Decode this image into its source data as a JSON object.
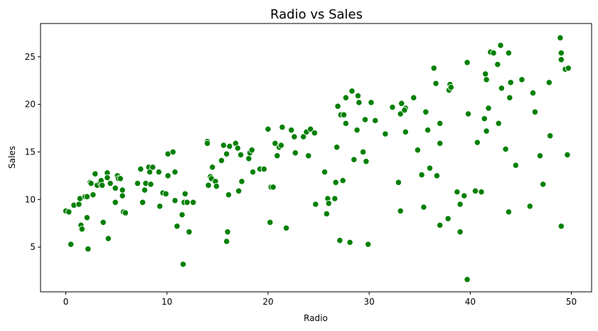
{
  "chart_data": {
    "type": "scatter",
    "title": "Radio vs Sales",
    "xlabel": "Radio",
    "ylabel": "Sales",
    "xlim": [
      -2.5,
      52.0
    ],
    "ylim": [
      0.3,
      28.5
    ],
    "x_ticks": [
      0,
      10,
      20,
      30,
      40,
      50
    ],
    "y_ticks": [
      5,
      10,
      15,
      20,
      25
    ],
    "marker_color": "#008000",
    "grid": false,
    "series": [
      {
        "points": [
          [
            0.0,
            8.8
          ],
          [
            0.3,
            8.7
          ],
          [
            0.5,
            5.3
          ],
          [
            0.8,
            9.4
          ],
          [
            1.3,
            9.5
          ],
          [
            1.4,
            10.1
          ],
          [
            1.5,
            7.3
          ],
          [
            1.6,
            6.9
          ],
          [
            1.9,
            10.3
          ],
          [
            2.1,
            10.3
          ],
          [
            2.1,
            8.1
          ],
          [
            2.2,
            4.8
          ],
          [
            2.4,
            11.8
          ],
          [
            2.5,
            11.7
          ],
          [
            2.7,
            10.5
          ],
          [
            2.9,
            12.7
          ],
          [
            3.1,
            11.5
          ],
          [
            3.4,
            11.8
          ],
          [
            3.5,
            12.0
          ],
          [
            3.6,
            11.5
          ],
          [
            3.7,
            7.6
          ],
          [
            4.1,
            12.8
          ],
          [
            4.1,
            12.3
          ],
          [
            4.2,
            5.9
          ],
          [
            4.4,
            11.7
          ],
          [
            4.9,
            9.7
          ],
          [
            4.9,
            11.2
          ],
          [
            5.1,
            12.5
          ],
          [
            5.2,
            12.2
          ],
          [
            5.4,
            12.2
          ],
          [
            5.6,
            10.4
          ],
          [
            5.6,
            11.0
          ],
          [
            5.7,
            8.7
          ],
          [
            5.9,
            8.6
          ],
          [
            7.1,
            11.7
          ],
          [
            7.4,
            13.2
          ],
          [
            7.6,
            9.7
          ],
          [
            7.8,
            11.0
          ],
          [
            7.9,
            11.7
          ],
          [
            8.2,
            13.4
          ],
          [
            8.3,
            12.9
          ],
          [
            8.4,
            11.6
          ],
          [
            8.6,
            13.4
          ],
          [
            9.2,
            12.9
          ],
          [
            9.3,
            9.3
          ],
          [
            9.6,
            10.7
          ],
          [
            9.9,
            10.6
          ],
          [
            10.1,
            12.5
          ],
          [
            10.1,
            14.8
          ],
          [
            10.6,
            15.0
          ],
          [
            10.8,
            12.9
          ],
          [
            10.8,
            9.9
          ],
          [
            11.0,
            7.2
          ],
          [
            11.5,
            8.4
          ],
          [
            11.6,
            3.2
          ],
          [
            11.7,
            9.7
          ],
          [
            11.8,
            10.6
          ],
          [
            12.0,
            9.7
          ],
          [
            12.2,
            6.6
          ],
          [
            12.6,
            9.7
          ],
          [
            14.0,
            16.1
          ],
          [
            14.0,
            15.9
          ],
          [
            14.1,
            11.5
          ],
          [
            14.3,
            12.4
          ],
          [
            14.4,
            12.2
          ],
          [
            14.5,
            13.4
          ],
          [
            14.8,
            11.9
          ],
          [
            14.9,
            11.4
          ],
          [
            15.4,
            14.1
          ],
          [
            15.6,
            15.7
          ],
          [
            15.9,
            14.8
          ],
          [
            15.9,
            5.6
          ],
          [
            16.0,
            6.6
          ],
          [
            16.1,
            10.5
          ],
          [
            16.2,
            15.6
          ],
          [
            16.8,
            15.9
          ],
          [
            17.0,
            15.4
          ],
          [
            17.1,
            10.9
          ],
          [
            17.3,
            14.7
          ],
          [
            17.4,
            11.9
          ],
          [
            18.1,
            14.3
          ],
          [
            18.2,
            14.9
          ],
          [
            18.4,
            15.2
          ],
          [
            18.5,
            12.9
          ],
          [
            19.2,
            13.2
          ],
          [
            19.6,
            13.2
          ],
          [
            20.0,
            17.4
          ],
          [
            20.2,
            7.6
          ],
          [
            20.3,
            11.3
          ],
          [
            20.5,
            11.3
          ],
          [
            20.7,
            15.9
          ],
          [
            20.9,
            14.6
          ],
          [
            21.1,
            15.5
          ],
          [
            21.3,
            15.7
          ],
          [
            21.4,
            17.6
          ],
          [
            21.8,
            7.0
          ],
          [
            22.3,
            17.3
          ],
          [
            22.6,
            16.6
          ],
          [
            22.7,
            14.9
          ],
          [
            23.5,
            16.6
          ],
          [
            23.8,
            17.1
          ],
          [
            24.0,
            14.6
          ],
          [
            24.2,
            17.4
          ],
          [
            24.6,
            17.0
          ],
          [
            24.7,
            9.5
          ],
          [
            25.6,
            12.9
          ],
          [
            25.8,
            8.5
          ],
          [
            25.9,
            10.1
          ],
          [
            26.0,
            9.6
          ],
          [
            26.6,
            10.1
          ],
          [
            26.7,
            11.8
          ],
          [
            26.8,
            15.5
          ],
          [
            26.9,
            19.8
          ],
          [
            27.1,
            5.7
          ],
          [
            27.2,
            18.9
          ],
          [
            27.4,
            12.0
          ],
          [
            27.5,
            18.9
          ],
          [
            27.7,
            20.7
          ],
          [
            27.7,
            18.0
          ],
          [
            28.1,
            5.5
          ],
          [
            28.3,
            21.4
          ],
          [
            28.5,
            14.2
          ],
          [
            28.8,
            17.3
          ],
          [
            28.9,
            20.9
          ],
          [
            29.0,
            20.2
          ],
          [
            29.4,
            15.0
          ],
          [
            29.6,
            18.4
          ],
          [
            29.7,
            14.0
          ],
          [
            29.9,
            5.3
          ],
          [
            30.2,
            20.2
          ],
          [
            30.6,
            18.3
          ],
          [
            31.6,
            16.9
          ],
          [
            32.3,
            19.7
          ],
          [
            32.9,
            11.8
          ],
          [
            33.1,
            8.8
          ],
          [
            33.2,
            20.1
          ],
          [
            33.6,
            19.6
          ],
          [
            33.6,
            17.1
          ],
          [
            33.1,
            19.0
          ],
          [
            33.5,
            19.4
          ],
          [
            34.4,
            20.7
          ],
          [
            34.8,
            15.2
          ],
          [
            35.2,
            12.6
          ],
          [
            35.4,
            9.2
          ],
          [
            35.6,
            19.2
          ],
          [
            35.8,
            17.3
          ],
          [
            36.0,
            13.3
          ],
          [
            36.6,
            22.2
          ],
          [
            36.4,
            23.8
          ],
          [
            36.7,
            12.5
          ],
          [
            37.0,
            18.0
          ],
          [
            37.0,
            15.9
          ],
          [
            37.0,
            7.3
          ],
          [
            37.8,
            8.0
          ],
          [
            37.9,
            21.5
          ],
          [
            38.0,
            22.1
          ],
          [
            38.1,
            21.8
          ],
          [
            38.7,
            10.8
          ],
          [
            39.0,
            6.6
          ],
          [
            39.0,
            9.5
          ],
          [
            39.4,
            10.4
          ],
          [
            39.7,
            1.6
          ],
          [
            39.7,
            24.4
          ],
          [
            39.8,
            19.0
          ],
          [
            40.5,
            10.9
          ],
          [
            40.7,
            16.0
          ],
          [
            41.1,
            10.8
          ],
          [
            41.4,
            18.5
          ],
          [
            41.5,
            23.2
          ],
          [
            41.6,
            22.6
          ],
          [
            41.6,
            17.2
          ],
          [
            41.8,
            19.6
          ],
          [
            42.0,
            25.5
          ],
          [
            42.3,
            25.4
          ],
          [
            42.8,
            18.0
          ],
          [
            42.7,
            24.2
          ],
          [
            43.0,
            26.2
          ],
          [
            43.1,
            21.7
          ],
          [
            43.5,
            15.3
          ],
          [
            43.8,
            25.4
          ],
          [
            43.8,
            8.7
          ],
          [
            43.9,
            20.7
          ],
          [
            44.0,
            22.3
          ],
          [
            44.5,
            13.6
          ],
          [
            45.1,
            22.6
          ],
          [
            45.9,
            9.3
          ],
          [
            46.2,
            21.2
          ],
          [
            46.4,
            19.2
          ],
          [
            46.9,
            14.6
          ],
          [
            47.2,
            11.6
          ],
          [
            47.8,
            22.3
          ],
          [
            47.9,
            16.7
          ],
          [
            48.9,
            27.0
          ],
          [
            49.0,
            25.4
          ],
          [
            49.0,
            24.7
          ],
          [
            49.0,
            7.2
          ],
          [
            49.4,
            23.7
          ],
          [
            49.6,
            14.7
          ],
          [
            49.7,
            23.8
          ]
        ]
      }
    ]
  }
}
